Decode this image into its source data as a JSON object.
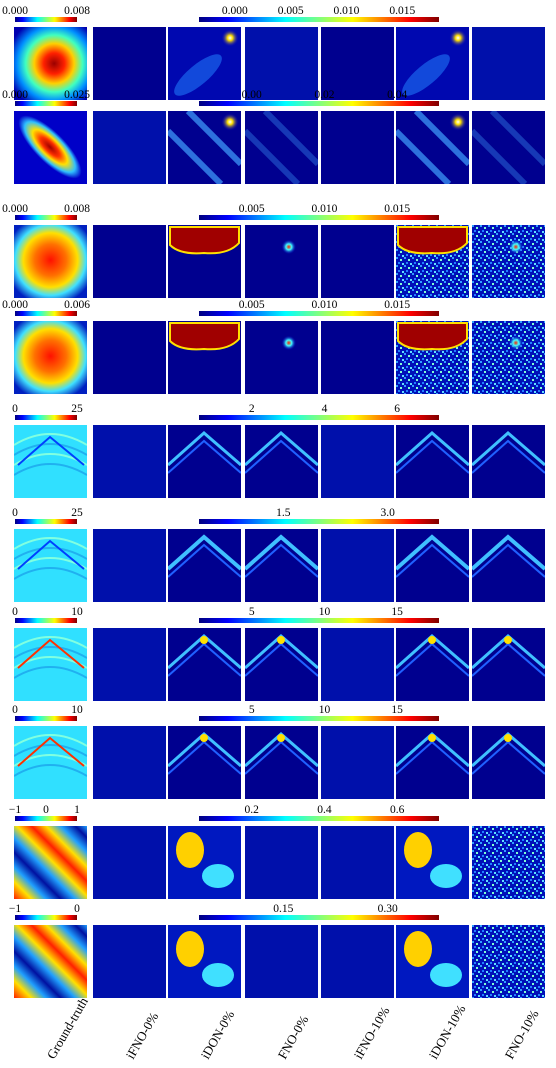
{
  "colors": {
    "jet": [
      "#00007f",
      "#0000ff",
      "#007fff",
      "#00ffff",
      "#7fff7f",
      "#ffff00",
      "#ff7f00",
      "#ff0000",
      "#7f0000"
    ],
    "background": "#00008f"
  },
  "columns": [
    "Ground-truth",
    "iFNO-0%",
    "iDON-0%",
    "FNO-0%",
    "iFNO-10%",
    "iDON-10%",
    "FNO-10%"
  ],
  "rows": [
    {
      "gt_ticks": [
        "0.000",
        "0.008"
      ],
      "err_ticks": [
        "0.000",
        "0.005",
        "0.010",
        "0.015"
      ],
      "gt_pattern": "blob",
      "err_patterns": [
        "none",
        "blob-corner",
        "faint",
        "none",
        "blob-corner",
        "faint"
      ]
    },
    {
      "gt_ticks": [
        "0.000",
        "0.025"
      ],
      "err_ticks": [
        "0.00",
        "0.02",
        "0.04"
      ],
      "gt_pattern": "ellipse",
      "err_patterns": [
        "faint",
        "diag-stripes",
        "diag-faint",
        "none",
        "diag-stripes",
        "diag-faint"
      ]
    },
    {
      "gt_ticks": [
        "0.000",
        "0.008"
      ],
      "err_ticks": [
        "0.005",
        "0.010",
        "0.015"
      ],
      "gt_pattern": "square",
      "err_patterns": [
        "none",
        "saturated",
        "spot",
        "none",
        "saturated-noise",
        "noise-spot"
      ]
    },
    {
      "gt_ticks": [
        "0.000",
        "0.006"
      ],
      "err_ticks": [
        "0.005",
        "0.010",
        "0.015"
      ],
      "gt_pattern": "square",
      "err_patterns": [
        "none",
        "saturated",
        "spot",
        "none",
        "saturated-noise",
        "noise-spot"
      ]
    },
    {
      "gt_ticks": [
        "0",
        "25"
      ],
      "err_ticks": [
        "2",
        "4",
        "6"
      ],
      "gt_pattern": "wave",
      "err_patterns": [
        "faint",
        "chevron",
        "chevron",
        "faint",
        "chevron",
        "chevron"
      ]
    },
    {
      "gt_ticks": [
        "0",
        "25"
      ],
      "err_ticks": [
        "1.5",
        "3.0"
      ],
      "gt_pattern": "wave",
      "err_patterns": [
        "faint",
        "chevron-strong",
        "chevron-strong",
        "faint",
        "chevron-strong",
        "chevron-strong"
      ]
    },
    {
      "gt_ticks": [
        "0",
        "10"
      ],
      "err_ticks": [
        "5",
        "10",
        "15"
      ],
      "gt_pattern": "wave-bright",
      "err_patterns": [
        "faint",
        "peak",
        "peak",
        "faint",
        "peak",
        "peak"
      ]
    },
    {
      "gt_ticks": [
        "0",
        "10"
      ],
      "err_ticks": [
        "5",
        "10",
        "15"
      ],
      "gt_pattern": "wave-bright",
      "err_patterns": [
        "faint",
        "peak",
        "peak",
        "faint",
        "peak",
        "peak"
      ]
    },
    {
      "gt_ticks": [
        "−1",
        "0",
        "1"
      ],
      "err_ticks": [
        "0.2",
        "0.4",
        "0.6"
      ],
      "gt_pattern": "stripes",
      "err_patterns": [
        "faint",
        "blobs",
        "faint",
        "faint",
        "blobs",
        "noise"
      ]
    },
    {
      "gt_ticks": [
        "−1",
        "0"
      ],
      "err_ticks": [
        "0.15",
        "0.30"
      ],
      "gt_pattern": "stripes",
      "err_patterns": [
        "faint",
        "blobs",
        "faint",
        "faint",
        "blobs",
        "noise"
      ]
    }
  ]
}
